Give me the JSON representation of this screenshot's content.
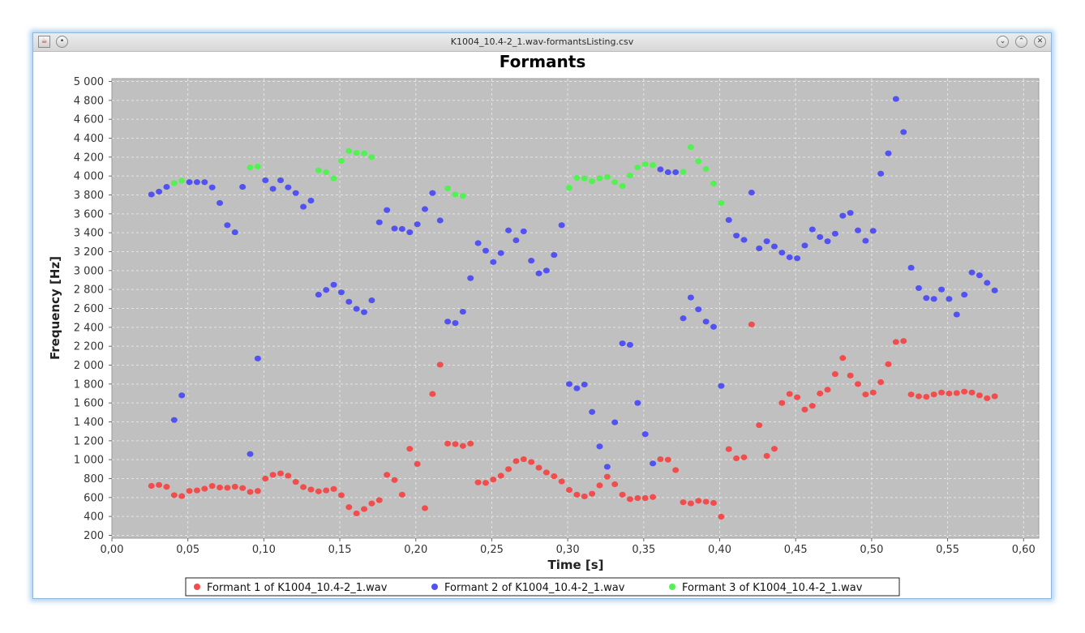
{
  "window": {
    "title": "K1004_10.4-2_1.wav-formantsListing.csv",
    "icons": {
      "app": "java-cup-icon",
      "menu": "dot-menu-icon",
      "minimize": "chevron-down-icon",
      "maximize": "chevron-up-icon",
      "close": "close-icon"
    }
  },
  "chart_data": {
    "type": "scatter",
    "title": "Formants",
    "xlabel": "Time [s]",
    "ylabel": "Frequency [Hz]",
    "xlim": [
      0,
      0.61
    ],
    "ylim": [
      170,
      5030
    ],
    "xticks": [
      0,
      0.05,
      0.1,
      0.15,
      0.2,
      0.25,
      0.3,
      0.35,
      0.4,
      0.45,
      0.5,
      0.55,
      0.6
    ],
    "yticks": [
      200,
      400,
      600,
      800,
      1000,
      1200,
      1400,
      1600,
      1800,
      2000,
      2200,
      2400,
      2600,
      2800,
      3000,
      3200,
      3400,
      3600,
      3800,
      4000,
      4200,
      4400,
      4600,
      4800,
      5000
    ],
    "xtick_labels": [
      "0,00",
      "0,05",
      "0,10",
      "0,15",
      "0,20",
      "0,25",
      "0,30",
      "0,35",
      "0,40",
      "0,45",
      "0,50",
      "0,55",
      "0,60"
    ],
    "ytick_labels": [
      "200",
      "400",
      "600",
      "800",
      "1 000",
      "1 200",
      "1 400",
      "1 600",
      "1 800",
      "2 000",
      "2 200",
      "2 400",
      "2 600",
      "2 800",
      "3 000",
      "3 200",
      "3 400",
      "3 600",
      "3 800",
      "4 000",
      "4 200",
      "4 400",
      "4 600",
      "4 800",
      "5 000"
    ],
    "grid": true,
    "legend_position": "bottom",
    "colors": {
      "plot_bg": "#c0c0c0",
      "grid": "#e4e4e4"
    },
    "series": [
      {
        "name": "Formant 1 of K1004_10.4-2_1.wav",
        "color": "#f24d4d",
        "points": [
          [
            0.026,
            723
          ],
          [
            0.031,
            733
          ],
          [
            0.036,
            713
          ],
          [
            0.041,
            625
          ],
          [
            0.046,
            615
          ],
          [
            0.051,
            670
          ],
          [
            0.056,
            675
          ],
          [
            0.061,
            693
          ],
          [
            0.066,
            722
          ],
          [
            0.071,
            706
          ],
          [
            0.076,
            703
          ],
          [
            0.081,
            714
          ],
          [
            0.086,
            700
          ],
          [
            0.091,
            659
          ],
          [
            0.096,
            669
          ],
          [
            0.101,
            800
          ],
          [
            0.106,
            840
          ],
          [
            0.111,
            855
          ],
          [
            0.116,
            830
          ],
          [
            0.121,
            765
          ],
          [
            0.126,
            710
          ],
          [
            0.131,
            685
          ],
          [
            0.136,
            665
          ],
          [
            0.141,
            675
          ],
          [
            0.146,
            690
          ],
          [
            0.151,
            625
          ],
          [
            0.156,
            498
          ],
          [
            0.161,
            432
          ],
          [
            0.166,
            478
          ],
          [
            0.171,
            537
          ],
          [
            0.176,
            572
          ],
          [
            0.181,
            840
          ],
          [
            0.186,
            785
          ],
          [
            0.191,
            630
          ],
          [
            0.196,
            1115
          ],
          [
            0.201,
            955
          ],
          [
            0.206,
            487
          ],
          [
            0.211,
            1695
          ],
          [
            0.216,
            2005
          ],
          [
            0.221,
            1170
          ],
          [
            0.226,
            1165
          ],
          [
            0.231,
            1145
          ],
          [
            0.236,
            1170
          ],
          [
            0.241,
            760
          ],
          [
            0.246,
            755
          ],
          [
            0.251,
            790
          ],
          [
            0.256,
            830
          ],
          [
            0.261,
            900
          ],
          [
            0.266,
            985
          ],
          [
            0.271,
            1005
          ],
          [
            0.276,
            975
          ],
          [
            0.281,
            915
          ],
          [
            0.286,
            865
          ],
          [
            0.291,
            825
          ],
          [
            0.296,
            770
          ],
          [
            0.301,
            680
          ],
          [
            0.306,
            630
          ],
          [
            0.311,
            612
          ],
          [
            0.316,
            640
          ],
          [
            0.321,
            728
          ],
          [
            0.326,
            820
          ],
          [
            0.331,
            740
          ],
          [
            0.336,
            630
          ],
          [
            0.341,
            583
          ],
          [
            0.346,
            594
          ],
          [
            0.351,
            594
          ],
          [
            0.356,
            605
          ],
          [
            0.361,
            1005
          ],
          [
            0.366,
            1000
          ],
          [
            0.371,
            890
          ],
          [
            0.376,
            550
          ],
          [
            0.381,
            538
          ],
          [
            0.386,
            565
          ],
          [
            0.391,
            555
          ],
          [
            0.396,
            543
          ],
          [
            0.401,
            397
          ],
          [
            0.406,
            1112
          ],
          [
            0.411,
            1015
          ],
          [
            0.416,
            1025
          ],
          [
            0.421,
            2430
          ],
          [
            0.426,
            1365
          ],
          [
            0.431,
            1040
          ],
          [
            0.436,
            1115
          ],
          [
            0.441,
            1600
          ],
          [
            0.446,
            1695
          ],
          [
            0.451,
            1660
          ],
          [
            0.456,
            1530
          ],
          [
            0.461,
            1570
          ],
          [
            0.466,
            1700
          ],
          [
            0.471,
            1740
          ],
          [
            0.476,
            1905
          ],
          [
            0.481,
            2075
          ],
          [
            0.486,
            1890
          ],
          [
            0.491,
            1800
          ],
          [
            0.496,
            1690
          ],
          [
            0.501,
            1710
          ],
          [
            0.506,
            1820
          ],
          [
            0.511,
            2010
          ],
          [
            0.516,
            2245
          ],
          [
            0.521,
            2255
          ],
          [
            0.526,
            1690
          ],
          [
            0.531,
            1670
          ],
          [
            0.536,
            1665
          ],
          [
            0.541,
            1690
          ],
          [
            0.546,
            1710
          ],
          [
            0.551,
            1700
          ],
          [
            0.556,
            1705
          ],
          [
            0.561,
            1720
          ],
          [
            0.566,
            1710
          ],
          [
            0.571,
            1680
          ],
          [
            0.576,
            1650
          ],
          [
            0.581,
            1670
          ]
        ]
      },
      {
        "name": "Formant 2 of K1004_10.4-2_1.wav",
        "color": "#5252f2",
        "points": [
          [
            0.026,
            3805
          ],
          [
            0.031,
            3835
          ],
          [
            0.036,
            3885
          ],
          [
            0.041,
            1420
          ],
          [
            0.046,
            1680
          ],
          [
            0.051,
            3935
          ],
          [
            0.056,
            3935
          ],
          [
            0.061,
            3935
          ],
          [
            0.066,
            3880
          ],
          [
            0.071,
            3715
          ],
          [
            0.076,
            3480
          ],
          [
            0.081,
            3405
          ],
          [
            0.086,
            3885
          ],
          [
            0.091,
            1060
          ],
          [
            0.096,
            2070
          ],
          [
            0.101,
            3955
          ],
          [
            0.106,
            3865
          ],
          [
            0.111,
            3955
          ],
          [
            0.116,
            3880
          ],
          [
            0.121,
            3820
          ],
          [
            0.126,
            3675
          ],
          [
            0.131,
            3740
          ],
          [
            0.136,
            2745
          ],
          [
            0.141,
            2795
          ],
          [
            0.146,
            2850
          ],
          [
            0.151,
            2770
          ],
          [
            0.156,
            2670
          ],
          [
            0.161,
            2595
          ],
          [
            0.166,
            2560
          ],
          [
            0.171,
            2685
          ],
          [
            0.176,
            3510
          ],
          [
            0.181,
            3640
          ],
          [
            0.186,
            3445
          ],
          [
            0.191,
            3440
          ],
          [
            0.196,
            3405
          ],
          [
            0.201,
            3490
          ],
          [
            0.206,
            3650
          ],
          [
            0.211,
            3820
          ],
          [
            0.216,
            3530
          ],
          [
            0.221,
            2460
          ],
          [
            0.226,
            2445
          ],
          [
            0.231,
            2565
          ],
          [
            0.236,
            2920
          ],
          [
            0.241,
            3290
          ],
          [
            0.246,
            3210
          ],
          [
            0.251,
            3090
          ],
          [
            0.256,
            3185
          ],
          [
            0.261,
            3425
          ],
          [
            0.266,
            3320
          ],
          [
            0.271,
            3415
          ],
          [
            0.276,
            3105
          ],
          [
            0.281,
            2970
          ],
          [
            0.286,
            3000
          ],
          [
            0.291,
            3165
          ],
          [
            0.296,
            3480
          ],
          [
            0.301,
            1800
          ],
          [
            0.306,
            1755
          ],
          [
            0.311,
            1795
          ],
          [
            0.316,
            1505
          ],
          [
            0.321,
            1140
          ],
          [
            0.326,
            925
          ],
          [
            0.331,
            1395
          ],
          [
            0.336,
            2230
          ],
          [
            0.341,
            2215
          ],
          [
            0.346,
            1600
          ],
          [
            0.351,
            1270
          ],
          [
            0.356,
            960
          ],
          [
            0.361,
            4070
          ],
          [
            0.366,
            4040
          ],
          [
            0.371,
            4040
          ],
          [
            0.376,
            2495
          ],
          [
            0.381,
            2715
          ],
          [
            0.386,
            2590
          ],
          [
            0.391,
            2460
          ],
          [
            0.396,
            2405
          ],
          [
            0.401,
            1780
          ],
          [
            0.406,
            3535
          ],
          [
            0.411,
            3370
          ],
          [
            0.416,
            3325
          ],
          [
            0.421,
            3825
          ],
          [
            0.426,
            3235
          ],
          [
            0.431,
            3310
          ],
          [
            0.436,
            3255
          ],
          [
            0.441,
            3190
          ],
          [
            0.446,
            3140
          ],
          [
            0.451,
            3130
          ],
          [
            0.456,
            3265
          ],
          [
            0.461,
            3435
          ],
          [
            0.466,
            3355
          ],
          [
            0.471,
            3310
          ],
          [
            0.476,
            3390
          ],
          [
            0.481,
            3580
          ],
          [
            0.486,
            3610
          ],
          [
            0.491,
            3425
          ],
          [
            0.496,
            3315
          ],
          [
            0.501,
            3420
          ],
          [
            0.506,
            4025
          ],
          [
            0.511,
            4240
          ],
          [
            0.516,
            4815
          ],
          [
            0.521,
            4465
          ],
          [
            0.526,
            3030
          ],
          [
            0.531,
            2815
          ],
          [
            0.536,
            2710
          ],
          [
            0.541,
            2700
          ],
          [
            0.546,
            2800
          ],
          [
            0.551,
            2700
          ],
          [
            0.556,
            2535
          ],
          [
            0.561,
            2745
          ],
          [
            0.566,
            2980
          ],
          [
            0.571,
            2950
          ],
          [
            0.576,
            2870
          ],
          [
            0.581,
            2790
          ]
        ]
      },
      {
        "name": "Formant 3 of K1004_10.4-2_1.wav",
        "color": "#52f252",
        "points": [
          [
            0.041,
            3925
          ],
          [
            0.046,
            3950
          ],
          [
            0.091,
            4090
          ],
          [
            0.096,
            4100
          ],
          [
            0.136,
            4060
          ],
          [
            0.141,
            4040
          ],
          [
            0.146,
            3975
          ],
          [
            0.151,
            4160
          ],
          [
            0.156,
            4265
          ],
          [
            0.161,
            4245
          ],
          [
            0.166,
            4240
          ],
          [
            0.171,
            4200
          ],
          [
            0.221,
            3870
          ],
          [
            0.226,
            3805
          ],
          [
            0.231,
            3790
          ],
          [
            0.301,
            3875
          ],
          [
            0.306,
            3980
          ],
          [
            0.311,
            3975
          ],
          [
            0.316,
            3945
          ],
          [
            0.321,
            3975
          ],
          [
            0.326,
            3990
          ],
          [
            0.331,
            3935
          ],
          [
            0.336,
            3895
          ],
          [
            0.341,
            4005
          ],
          [
            0.346,
            4090
          ],
          [
            0.351,
            4125
          ],
          [
            0.356,
            4115
          ],
          [
            0.376,
            4045
          ],
          [
            0.381,
            4305
          ],
          [
            0.386,
            4155
          ],
          [
            0.391,
            4075
          ],
          [
            0.396,
            3920
          ],
          [
            0.401,
            3715
          ]
        ]
      }
    ]
  }
}
